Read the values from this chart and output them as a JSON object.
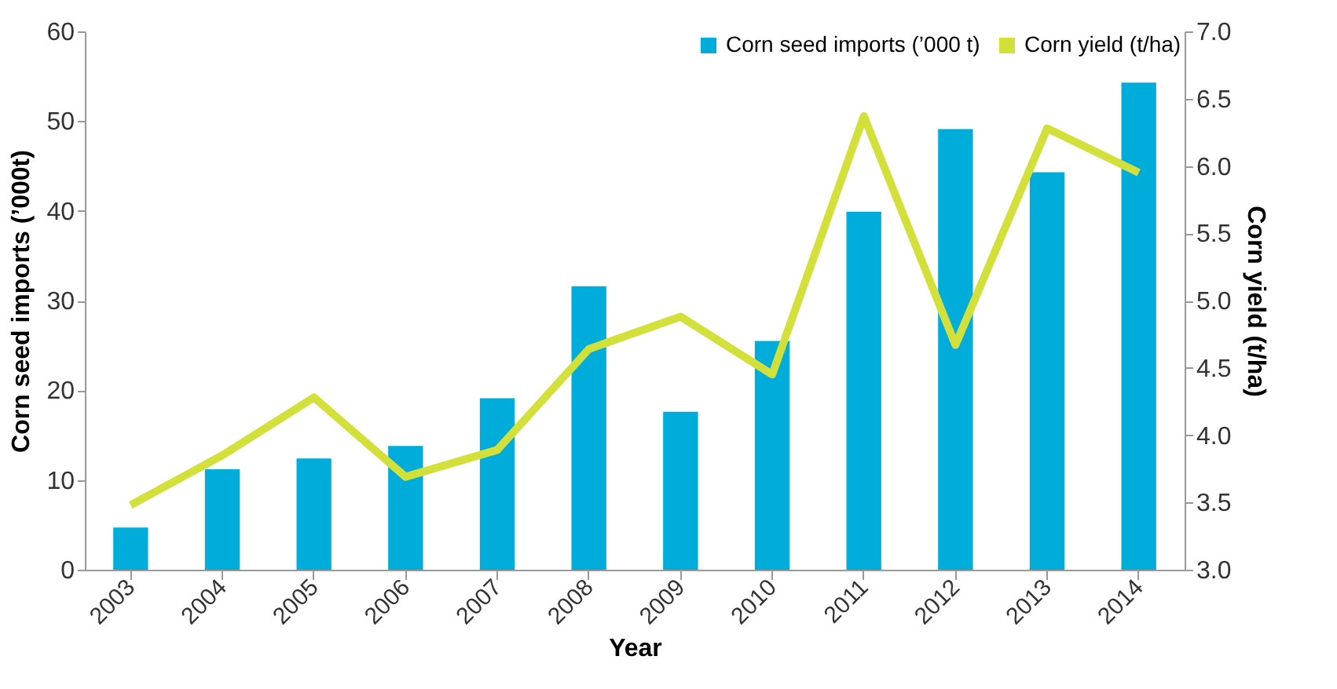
{
  "chart_data": {
    "type": "bar",
    "xlabel": "Year",
    "ylabel": "Corn seed imports (’000t)",
    "y2label": "Corn yield (t/ha)",
    "categories": [
      "2003",
      "2004",
      "2005",
      "2006",
      "2007",
      "2008",
      "2009",
      "2010",
      "2011",
      "2012",
      "2013",
      "2014"
    ],
    "series": [
      {
        "name": "Corn seed imports (’000 t)",
        "color": "#00acd9",
        "values": [
          4.7,
          11.2,
          12.4,
          13.8,
          19.1,
          31.6,
          17.6,
          25.5,
          39.9,
          49.1,
          44.3,
          54.3
        ]
      },
      {
        "name": "Corn yield (t/ha)",
        "type": "line",
        "axis": "y2",
        "color": "#d4e03a",
        "values": [
          3.48,
          3.85,
          4.28,
          3.69,
          3.89,
          4.64,
          4.88,
          4.45,
          6.37,
          4.67,
          6.28,
          5.95
        ]
      }
    ],
    "ylim": [
      0,
      60
    ],
    "yticks": [
      0,
      10,
      20,
      30,
      40,
      50,
      60
    ],
    "y2lim": [
      3,
      7
    ],
    "y2ticks": [
      {
        "value": 3,
        "label": "3.0"
      },
      {
        "value": 3.5,
        "label": "3.5"
      },
      {
        "value": 4,
        "label": "4.0"
      },
      {
        "value": 4.5,
        "label": "4.5"
      },
      {
        "value": 5,
        "label": "5.0"
      },
      {
        "value": 5.5,
        "label": "5.5"
      },
      {
        "value": 6,
        "label": "6.0"
      },
      {
        "value": 6.5,
        "label": "6.5"
      },
      {
        "value": 7,
        "label": "7.0"
      }
    ],
    "grid": false,
    "legend": "top right"
  }
}
